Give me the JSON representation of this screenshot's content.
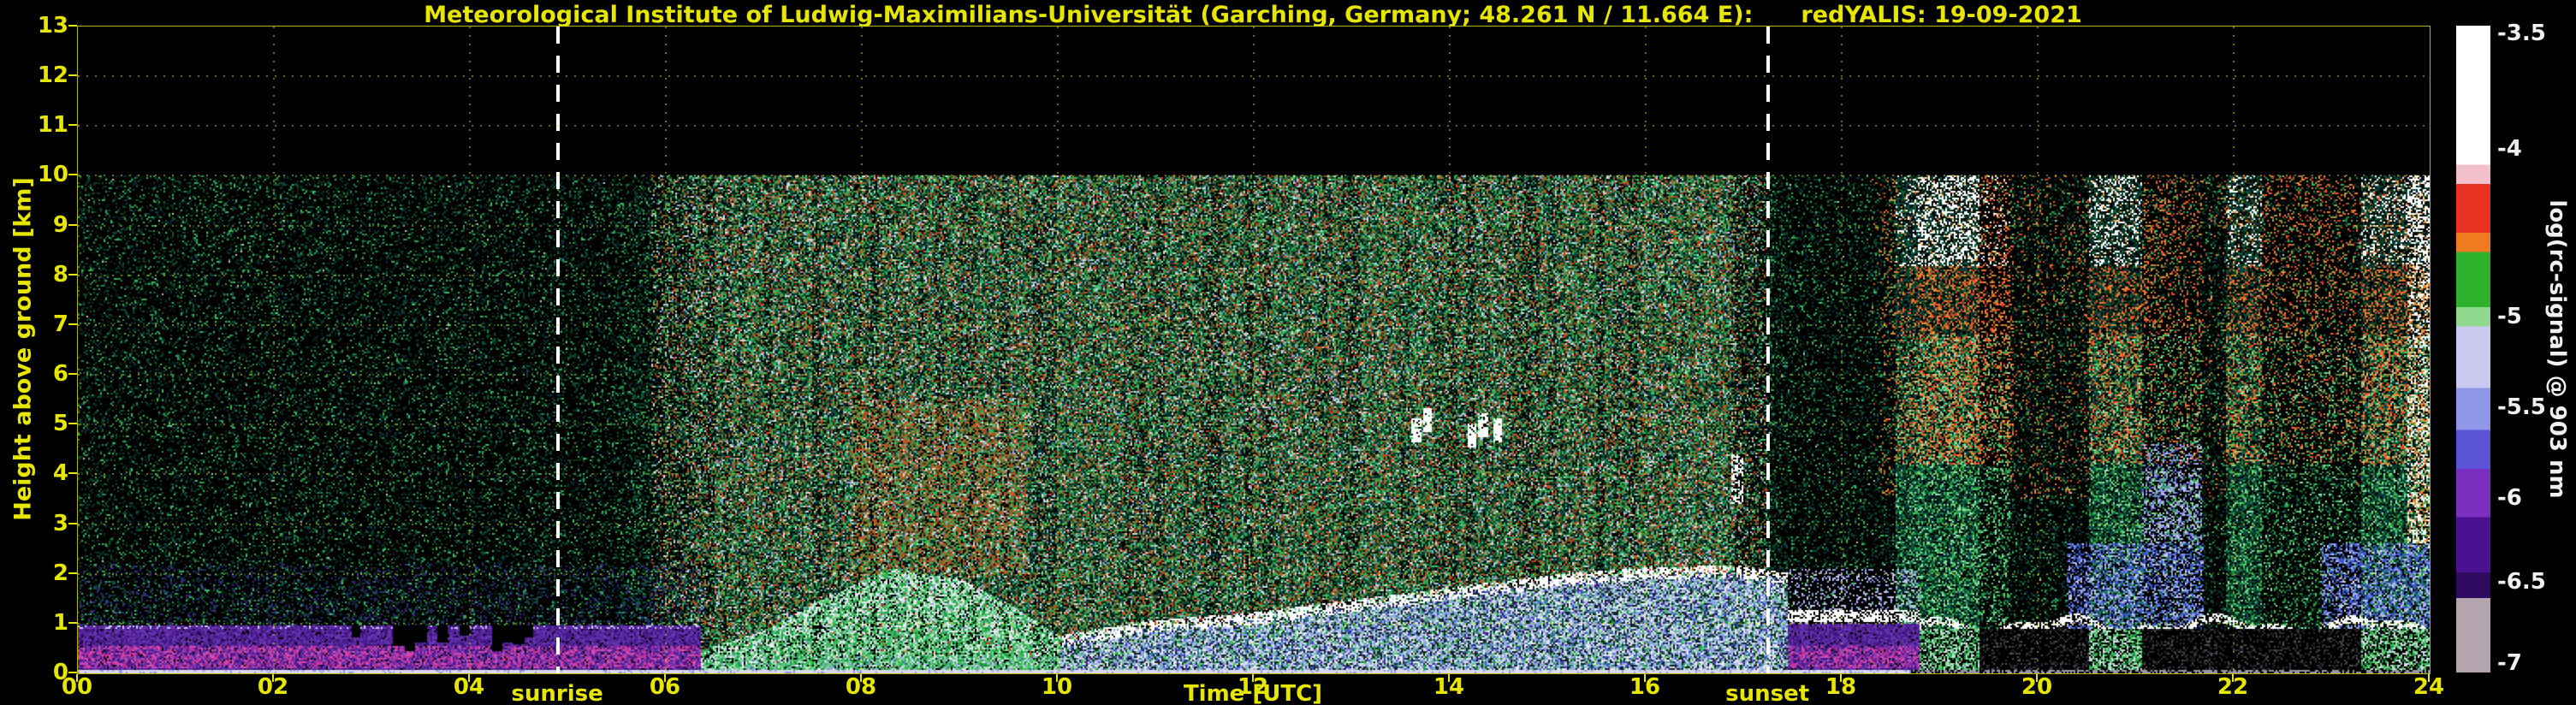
{
  "chart_data": {
    "type": "heatmap",
    "title": "Meteorological Institute of Ludwig-Maximilians-Universität (Garching, Germany; 48.261 N / 11.664 E):",
    "instrument_label": "redYALIS: 19-09-2021",
    "xlabel": "Time [UTC]",
    "ylabel": "Height above ground [km]",
    "x_tick_labels": [
      "00",
      "02",
      "04",
      "06",
      "08",
      "10",
      "12",
      "14",
      "16",
      "18",
      "20",
      "22",
      "24"
    ],
    "y_tick_labels": [
      "0",
      "1",
      "2",
      "3",
      "4",
      "5",
      "6",
      "7",
      "8",
      "9",
      "10",
      "11",
      "12",
      "13"
    ],
    "x_range_hours": [
      0,
      24
    ],
    "y_range_km": [
      0,
      13
    ],
    "data_ceiling_km": 10,
    "grid": true,
    "sunrise": {
      "label": "sunrise",
      "time_hours": 4.9
    },
    "sunset": {
      "label": "sunset",
      "time_hours": 17.25
    },
    "colorbar": {
      "label": "log(rc-signal) @ 903 nm",
      "position": "right",
      "range": [
        -7.0,
        -3.5
      ],
      "ticks": [
        {
          "label": "-3.5",
          "pos": 0.012
        },
        {
          "label": "-4",
          "pos": 0.19
        },
        {
          "label": "-5",
          "pos": 0.45
        },
        {
          "label": "-5.5",
          "pos": 0.59
        },
        {
          "label": "-6",
          "pos": 0.73
        },
        {
          "label": "-6.5",
          "pos": 0.86
        },
        {
          "label": "-7",
          "pos": 0.985
        }
      ],
      "segments": [
        {
          "from": 0.0,
          "to": 0.215,
          "color": "#ffffff"
        },
        {
          "from": 0.215,
          "to": 0.245,
          "color": "#f2c0ca"
        },
        {
          "from": 0.245,
          "to": 0.32,
          "color": "#e93323"
        },
        {
          "from": 0.32,
          "to": 0.35,
          "color": "#ef7a20"
        },
        {
          "from": 0.35,
          "to": 0.435,
          "color": "#2fb32f"
        },
        {
          "from": 0.435,
          "to": 0.465,
          "color": "#8fd98f"
        },
        {
          "from": 0.465,
          "to": 0.56,
          "color": "#cacaf0"
        },
        {
          "from": 0.56,
          "to": 0.625,
          "color": "#8f97e8"
        },
        {
          "from": 0.625,
          "to": 0.685,
          "color": "#5b54d6"
        },
        {
          "from": 0.685,
          "to": 0.76,
          "color": "#7a2fbf"
        },
        {
          "from": 0.76,
          "to": 0.845,
          "color": "#4a1192"
        },
        {
          "from": 0.845,
          "to": 0.885,
          "color": "#2e0a60"
        },
        {
          "from": 0.885,
          "to": 1.0,
          "color": "#b3a4ae"
        }
      ]
    },
    "features": [
      {
        "name": "nocturnal-aerosol-layer",
        "time_hours": [
          0,
          6.3
        ],
        "height_km": [
          0,
          1.0
        ],
        "appearance": "purple band with bright magenta core"
      },
      {
        "name": "signal-dropout-gaps",
        "time_hours": [
          2.8,
          4.6
        ],
        "height_km": [
          0.5,
          1.0
        ],
        "appearance": "black notches in the aerosol band"
      },
      {
        "name": "daylight-background-noise",
        "time_hours": [
          5,
          17.6
        ],
        "height_km": [
          0,
          10
        ],
        "appearance": "dense multicolour solar-background speckle"
      },
      {
        "name": "convective-plumes",
        "time_hours": [
          6.4,
          10
        ],
        "height_km": [
          0,
          2.2
        ],
        "appearance": "green thermals rising from the surface"
      },
      {
        "name": "elevated-haze",
        "time_hours": [
          7.9,
          9.7
        ],
        "height_km": [
          2,
          5.5
        ],
        "appearance": "orange-brown speckle"
      },
      {
        "name": "growing-mixed-layer",
        "time_hours": [
          10,
          17.4
        ],
        "height_top_km": [
          0.6,
          2.05
        ],
        "appearance": "blue-white layer with white cloud-topped edge"
      },
      {
        "name": "midday-cumulus",
        "time_hours": [
          13.6,
          14.5
        ],
        "height_km": [
          4.7,
          5.1
        ],
        "appearance": "bright white cloud echoes"
      },
      {
        "name": "evening-residual-layer",
        "time_hours": [
          17.3,
          18.8
        ],
        "height_km": [
          0,
          1.3
        ],
        "appearance": "purple band with white top line"
      },
      {
        "name": "precipitating-cloud-columns",
        "time_hours": [
          18.5,
          24
        ],
        "height_km": [
          0.8,
          10
        ],
        "appearance": "tall green/red/orange columns with white cloud tops"
      },
      {
        "name": "low-cloud-line",
        "time_hours": [
          18.8,
          24
        ],
        "height_km": [
          0.8,
          1.2
        ],
        "appearance": "thin white cloud-base line"
      },
      {
        "name": "low-level-blue-patches",
        "time_hours": [
          20.3,
          24
        ],
        "height_km": [
          1,
          2.6
        ],
        "appearance": "blue and lavender patches"
      }
    ]
  },
  "styles": {
    "background": "#000000",
    "axis_text": "#e6e600",
    "grid_color": "#d6d600",
    "sun_line": "#ffffff",
    "colorbar_text": "#f0f0f0"
  }
}
